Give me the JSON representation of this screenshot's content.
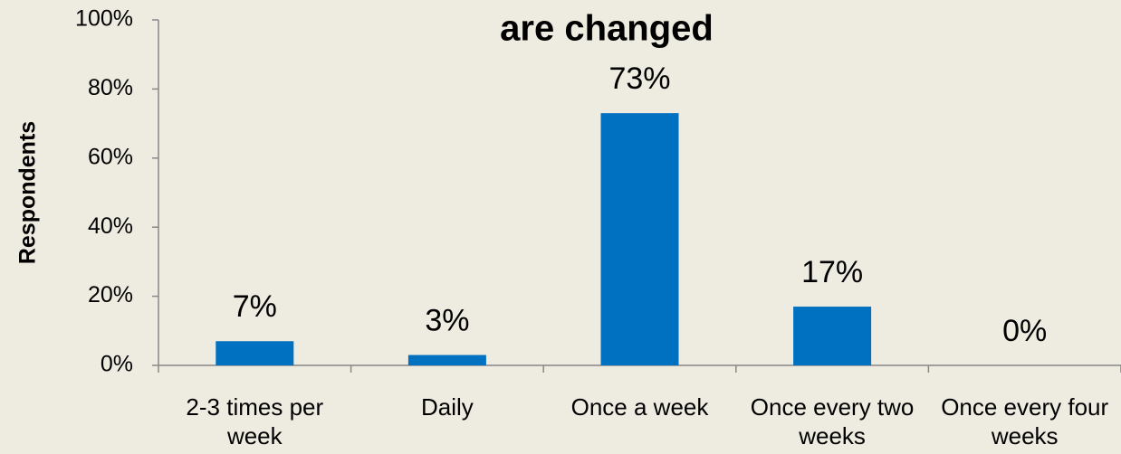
{
  "chart_data": {
    "type": "bar",
    "title": "are changed",
    "y_label": "Respondents",
    "categories": [
      "2-3 times per week",
      "Daily",
      "Once a week",
      "Once every two weeks",
      "Once every four weeks"
    ],
    "values": [
      7,
      3,
      73,
      17,
      0
    ],
    "value_labels": [
      "7%",
      "3%",
      "73%",
      "17%",
      "0%"
    ],
    "color": "#0070c0",
    "ylim": [
      0,
      100
    ],
    "yticks": [
      {
        "value": 0,
        "label": "0%"
      },
      {
        "value": 20,
        "label": "20%"
      },
      {
        "value": 40,
        "label": "40%"
      },
      {
        "value": 60,
        "label": "60%"
      },
      {
        "value": 80,
        "label": "80%"
      },
      {
        "value": 100,
        "label": "100%"
      }
    ],
    "grid": false
  }
}
